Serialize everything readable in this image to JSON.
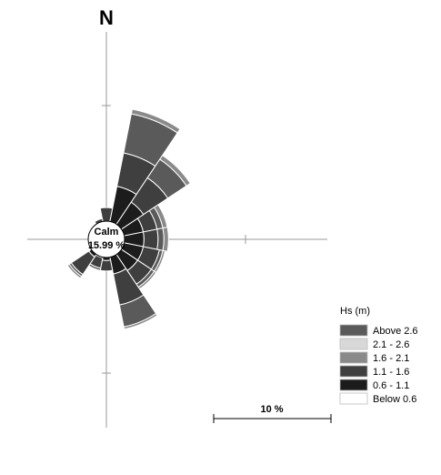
{
  "chart_data": {
    "type": "wind_rose",
    "north_label": "N",
    "calm_label": "Calm",
    "calm_value": "15.99 %",
    "legend_title": "Hs (m)",
    "bins": [
      {
        "label": "Above 2.6",
        "color": "#5a5a5a"
      },
      {
        "label": "2.1 - 2.6",
        "color": "#d8d8d8"
      },
      {
        "label": "1.6 - 2.1",
        "color": "#8a8a8a"
      },
      {
        "label": "1.1 - 1.6",
        "color": "#3f3f3f"
      },
      {
        "label": "0.6 - 1.1",
        "color": "#1c1c1c"
      },
      {
        "label": "Below 0.6",
        "color": "#ffffff"
      }
    ],
    "scale_label": "10 %",
    "scale_value_percent": 10,
    "sectors": [
      {
        "direction_deg": 0,
        "cumulative_percent": [
          1.1,
          1.1,
          1.5,
          2.7,
          2.7,
          2.7
        ]
      },
      {
        "direction_deg": 22.5,
        "cumulative_percent": [
          1.0,
          1.0,
          4.6,
          7.5,
          10.9,
          11.3
        ]
      },
      {
        "direction_deg": 45,
        "cumulative_percent": [
          1.0,
          1.0,
          3.8,
          6.3,
          8.2,
          8.6
        ]
      },
      {
        "direction_deg": 67.5,
        "cumulative_percent": [
          1.0,
          1.0,
          3.2,
          4.4,
          4.9,
          5.3
        ]
      },
      {
        "direction_deg": 90,
        "cumulative_percent": [
          1.0,
          1.0,
          3.2,
          4.4,
          4.9,
          5.3
        ]
      },
      {
        "direction_deg": 112.5,
        "cumulative_percent": [
          1.0,
          1.0,
          3.2,
          4.6,
          4.9,
          5.1
        ]
      },
      {
        "direction_deg": 135,
        "cumulative_percent": [
          1.0,
          1.0,
          3.2,
          4.6,
          4.9,
          5.1
        ]
      },
      {
        "direction_deg": 157.5,
        "cumulative_percent": [
          1.0,
          1.0,
          3.0,
          5.7,
          7.6,
          7.8
        ]
      },
      {
        "direction_deg": 180,
        "cumulative_percent": [
          1.0,
          1.0,
          1.8,
          2.7,
          2.7,
          2.7
        ]
      },
      {
        "direction_deg": 202.5,
        "cumulative_percent": [
          1.0,
          1.0,
          1.6,
          2.5,
          2.7,
          2.7
        ]
      },
      {
        "direction_deg": 225,
        "cumulative_percent": [
          1.0,
          1.0,
          1.8,
          3.6,
          3.8,
          4.0
        ]
      },
      {
        "direction_deg": 247.5,
        "cumulative_percent": [
          1.0,
          1.0,
          1.2,
          1.4,
          1.4,
          1.4
        ]
      },
      {
        "direction_deg": 270,
        "cumulative_percent": [
          1.0,
          1.0,
          1.0,
          1.0,
          1.0,
          1.0
        ]
      },
      {
        "direction_deg": 292.5,
        "cumulative_percent": [
          1.0,
          1.0,
          1.0,
          1.0,
          1.0,
          1.0
        ]
      },
      {
        "direction_deg": 315,
        "cumulative_percent": [
          1.0,
          1.0,
          1.2,
          1.2,
          1.2,
          1.2
        ]
      },
      {
        "direction_deg": 337.5,
        "cumulative_percent": [
          1.0,
          1.0,
          1.2,
          1.8,
          1.8,
          1.8
        ]
      }
    ]
  }
}
